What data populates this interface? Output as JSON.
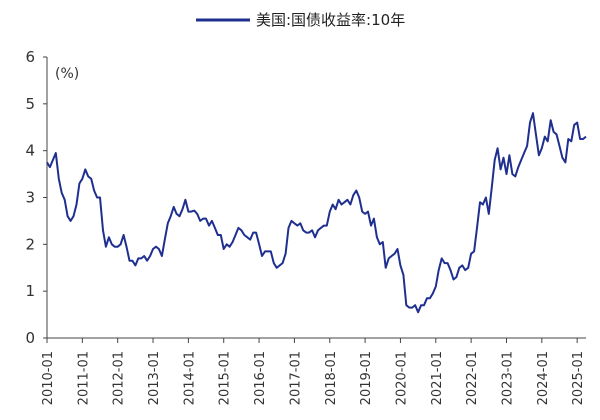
{
  "chart_data": {
    "type": "line",
    "title": "",
    "xlabel": "",
    "ylabel": "",
    "y_unit_label": "(%)",
    "ylim": [
      0,
      6
    ],
    "y_ticks": [
      "0",
      "1",
      "2",
      "3",
      "4",
      "5",
      "6"
    ],
    "x_tick_labels": [
      "2010-01",
      "2011-01",
      "2012-01",
      "2013-01",
      "2014-01",
      "2015-01",
      "2016-01",
      "2017-01",
      "2018-01",
      "2019-01",
      "2020-01",
      "2021-01",
      "2022-01",
      "2023-01",
      "2024-01",
      "2025-01"
    ],
    "x_range": [
      "2010-01",
      "2025-04"
    ],
    "grid": false,
    "legend_position": "top-center",
    "series": [
      {
        "name": "美国:国债收益率:10年",
        "color": "#1f2f8f",
        "x": [
          "2010-01",
          "2010-02",
          "2010-03",
          "2010-04",
          "2010-05",
          "2010-06",
          "2010-07",
          "2010-08",
          "2010-09",
          "2010-10",
          "2010-11",
          "2010-12",
          "2011-01",
          "2011-02",
          "2011-03",
          "2011-04",
          "2011-05",
          "2011-06",
          "2011-07",
          "2011-08",
          "2011-09",
          "2011-10",
          "2011-11",
          "2011-12",
          "2012-01",
          "2012-02",
          "2012-03",
          "2012-04",
          "2012-05",
          "2012-06",
          "2012-07",
          "2012-08",
          "2012-09",
          "2012-10",
          "2012-11",
          "2012-12",
          "2013-01",
          "2013-02",
          "2013-03",
          "2013-04",
          "2013-05",
          "2013-06",
          "2013-07",
          "2013-08",
          "2013-09",
          "2013-10",
          "2013-11",
          "2013-12",
          "2014-01",
          "2014-02",
          "2014-03",
          "2014-04",
          "2014-05",
          "2014-06",
          "2014-07",
          "2014-08",
          "2014-09",
          "2014-10",
          "2014-11",
          "2014-12",
          "2015-01",
          "2015-02",
          "2015-03",
          "2015-04",
          "2015-05",
          "2015-06",
          "2015-07",
          "2015-08",
          "2015-09",
          "2015-10",
          "2015-11",
          "2015-12",
          "2016-01",
          "2016-02",
          "2016-03",
          "2016-04",
          "2016-05",
          "2016-06",
          "2016-07",
          "2016-08",
          "2016-09",
          "2016-10",
          "2016-11",
          "2016-12",
          "2017-01",
          "2017-02",
          "2017-03",
          "2017-04",
          "2017-05",
          "2017-06",
          "2017-07",
          "2017-08",
          "2017-09",
          "2017-10",
          "2017-11",
          "2017-12",
          "2018-01",
          "2018-02",
          "2018-03",
          "2018-04",
          "2018-05",
          "2018-06",
          "2018-07",
          "2018-08",
          "2018-09",
          "2018-10",
          "2018-11",
          "2018-12",
          "2019-01",
          "2019-02",
          "2019-03",
          "2019-04",
          "2019-05",
          "2019-06",
          "2019-07",
          "2019-08",
          "2019-09",
          "2019-10",
          "2019-11",
          "2019-12",
          "2020-01",
          "2020-02",
          "2020-03",
          "2020-04",
          "2020-05",
          "2020-06",
          "2020-07",
          "2020-08",
          "2020-09",
          "2020-10",
          "2020-11",
          "2020-12",
          "2021-01",
          "2021-02",
          "2021-03",
          "2021-04",
          "2021-05",
          "2021-06",
          "2021-07",
          "2021-08",
          "2021-09",
          "2021-10",
          "2021-11",
          "2021-12",
          "2022-01",
          "2022-02",
          "2022-03",
          "2022-04",
          "2022-05",
          "2022-06",
          "2022-07",
          "2022-08",
          "2022-09",
          "2022-10",
          "2022-11",
          "2022-12",
          "2023-01",
          "2023-02",
          "2023-03",
          "2023-04",
          "2023-05",
          "2023-06",
          "2023-07",
          "2023-08",
          "2023-09",
          "2023-10",
          "2023-11",
          "2023-12",
          "2024-01",
          "2024-02",
          "2024-03",
          "2024-04",
          "2024-05",
          "2024-06",
          "2024-07",
          "2024-08",
          "2024-09",
          "2024-10",
          "2024-11",
          "2024-12",
          "2025-01",
          "2025-02",
          "2025-03",
          "2025-04"
        ],
        "values": [
          3.75,
          3.65,
          3.8,
          3.95,
          3.4,
          3.1,
          2.95,
          2.6,
          2.5,
          2.6,
          2.85,
          3.3,
          3.4,
          3.6,
          3.45,
          3.4,
          3.15,
          3.0,
          3.0,
          2.3,
          1.95,
          2.15,
          2.0,
          1.95,
          1.95,
          2.0,
          2.2,
          1.95,
          1.65,
          1.65,
          1.55,
          1.7,
          1.7,
          1.75,
          1.65,
          1.75,
          1.9,
          1.95,
          1.9,
          1.75,
          2.1,
          2.45,
          2.6,
          2.8,
          2.65,
          2.6,
          2.75,
          2.95,
          2.7,
          2.7,
          2.72,
          2.65,
          2.5,
          2.55,
          2.55,
          2.4,
          2.5,
          2.35,
          2.2,
          2.2,
          1.9,
          2.0,
          1.95,
          2.05,
          2.2,
          2.35,
          2.3,
          2.2,
          2.15,
          2.1,
          2.25,
          2.25,
          2.0,
          1.75,
          1.85,
          1.85,
          1.85,
          1.6,
          1.5,
          1.55,
          1.6,
          1.8,
          2.35,
          2.5,
          2.45,
          2.4,
          2.45,
          2.3,
          2.25,
          2.25,
          2.3,
          2.15,
          2.3,
          2.35,
          2.4,
          2.4,
          2.7,
          2.85,
          2.75,
          2.95,
          2.85,
          2.9,
          2.95,
          2.85,
          3.05,
          3.15,
          3.0,
          2.7,
          2.65,
          2.7,
          2.4,
          2.55,
          2.15,
          2.0,
          2.05,
          1.5,
          1.7,
          1.75,
          1.8,
          1.9,
          1.55,
          1.35,
          0.7,
          0.65,
          0.65,
          0.7,
          0.55,
          0.7,
          0.7,
          0.85,
          0.85,
          0.95,
          1.1,
          1.45,
          1.7,
          1.6,
          1.6,
          1.45,
          1.25,
          1.3,
          1.5,
          1.55,
          1.45,
          1.5,
          1.8,
          1.85,
          2.35,
          2.9,
          2.85,
          3.0,
          2.65,
          3.2,
          3.8,
          4.05,
          3.6,
          3.85,
          3.5,
          3.9,
          3.5,
          3.45,
          3.65,
          3.8,
          3.95,
          4.1,
          4.6,
          4.8,
          4.35,
          3.9,
          4.05,
          4.3,
          4.2,
          4.65,
          4.4,
          4.35,
          4.1,
          3.85,
          3.75,
          4.25,
          4.2,
          4.55,
          4.6,
          4.25,
          4.25,
          4.3
        ]
      }
    ]
  }
}
